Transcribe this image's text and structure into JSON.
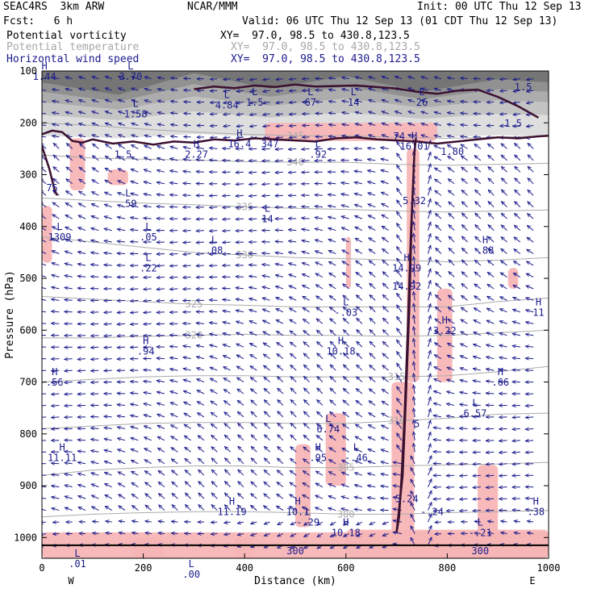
{
  "header": {
    "model": "SEAC4RS  3km ARW",
    "org": "NCAR/MMM",
    "init": "Init: 00 UTC Thu 12 Sep 13",
    "fcst": "Fcst:   6 h",
    "valid": "Valid: 06 UTC Thu 12 Sep 13 (01 CDT Thu 12 Sep 13)",
    "fields": [
      {
        "name": "Potential vorticity",
        "xy": "XY=  97.0, 98.5 to 430.8,123.5",
        "color": "#000000"
      },
      {
        "name": "Potential temperature",
        "xy": "XY=  97.0, 98.5 to 430.8,123.5",
        "color": "#a8a8a8"
      },
      {
        "name": "Horizontal wind speed",
        "xy": "XY=  97.0, 98.5 to 430.8,123.5",
        "color": "#1a1a8c"
      }
    ]
  },
  "chart_data": {
    "type": "cross-section",
    "xlabel": "Distance (km)",
    "ylabel": "Pressure (hPa)",
    "xlim": [
      0,
      1000
    ],
    "ylim": [
      1040,
      100
    ],
    "x_ticks": [
      0,
      200,
      400,
      600,
      800,
      1000
    ],
    "y_ticks": [
      100,
      200,
      300,
      400,
      500,
      600,
      700,
      800,
      900,
      1000
    ],
    "x_ends": {
      "left": "W",
      "right": "E"
    },
    "theta_contours": [
      {
        "label": "345",
        "x": [
          0,
          100,
          200,
          300,
          400,
          500,
          600,
          700,
          800,
          900,
          1000
        ],
        "p": [
          200,
          205,
          212,
          218,
          222,
          225,
          225,
          228,
          230,
          228,
          225
        ]
      },
      {
        "label": "340",
        "x": [
          0,
          100,
          200,
          300,
          400,
          500,
          600,
          700,
          800,
          900,
          1000
        ],
        "p": [
          262,
          268,
          270,
          272,
          275,
          276,
          276,
          280,
          282,
          280,
          278
        ]
      },
      {
        "label": "335",
        "x": [
          0,
          100,
          200,
          300,
          400,
          500,
          600,
          700,
          800,
          900,
          1000
        ],
        "p": [
          345,
          350,
          355,
          358,
          362,
          365,
          367,
          370,
          372,
          370,
          368
        ]
      },
      {
        "label": "330",
        "x": [
          0,
          100,
          200,
          300,
          400,
          500,
          600,
          700,
          800,
          900,
          1000
        ],
        "p": [
          420,
          430,
          440,
          450,
          455,
          460,
          462,
          465,
          468,
          465,
          460
        ]
      },
      {
        "label": "325",
        "x": [
          0,
          100,
          200,
          300,
          400,
          500,
          600,
          700,
          800,
          900,
          1000
        ],
        "p": [
          535,
          540,
          545,
          550,
          552,
          555,
          555,
          555,
          555,
          545,
          538
        ]
      },
      {
        "label": "320",
        "x": [
          0,
          100,
          200,
          300,
          400,
          500,
          600,
          700,
          800,
          900,
          1000
        ],
        "p": [
          615,
          615,
          612,
          610,
          608,
          610,
          610,
          612,
          610,
          605,
          600
        ]
      },
      {
        "label": "315",
        "x": [
          0,
          100,
          200,
          300,
          400,
          500,
          600,
          700,
          800,
          900,
          1000
        ],
        "p": [
          700,
          695,
          690,
          688,
          688,
          690,
          690,
          690,
          688,
          680,
          670
        ]
      },
      {
        "label": "310",
        "x": [
          0,
          100,
          200,
          300,
          400,
          500,
          600,
          700,
          800,
          900,
          1000
        ],
        "p": [
          790,
          785,
          780,
          778,
          778,
          780,
          780,
          775,
          770,
          762,
          760
        ]
      },
      {
        "label": "305",
        "x": [
          0,
          100,
          200,
          300,
          400,
          500,
          600,
          700,
          800,
          900,
          1000
        ],
        "p": [
          880,
          870,
          865,
          862,
          862,
          865,
          865,
          862,
          860,
          858,
          855
        ]
      },
      {
        "label": "300",
        "x": [
          0,
          100,
          200,
          300,
          400,
          500,
          600,
          700,
          800,
          900,
          1000
        ],
        "p": [
          960,
          955,
          952,
          950,
          950,
          952,
          955,
          955,
          952,
          950,
          948
        ]
      }
    ],
    "pv_contour_tropopause": {
      "x": [
        0,
        20,
        40,
        60,
        80,
        100,
        140,
        180,
        220,
        260,
        300,
        340,
        380,
        420,
        460,
        500,
        540,
        580,
        620,
        660,
        700,
        740,
        780,
        820,
        860,
        900,
        940,
        980,
        1000
      ],
      "p": [
        222,
        215,
        218,
        235,
        238,
        232,
        240,
        236,
        242,
        236,
        238,
        232,
        234,
        230,
        232,
        234,
        236,
        230,
        228,
        232,
        234,
        236,
        240,
        236,
        232,
        228,
        230,
        226,
        225
      ]
    },
    "pv_contour_upper": {
      "x": [
        300,
        340,
        380,
        420,
        460,
        500,
        540,
        580,
        620,
        660,
        700,
        740,
        780,
        820,
        860,
        900,
        940,
        980
      ],
      "p": [
        135,
        130,
        133,
        128,
        131,
        126,
        130,
        129,
        128,
        131,
        134,
        140,
        144,
        138,
        136,
        150,
        168,
        190
      ]
    },
    "pv_tower": {
      "x": [
        700,
        712,
        718,
        725,
        730,
        735,
        738,
        735,
        728,
        722,
        716,
        710,
        705,
        700
      ],
      "p": [
        990,
        880,
        740,
        560,
        380,
        260,
        230,
        260,
        420,
        600,
        760,
        880,
        960,
        990
      ]
    },
    "labels": [
      {
        "t": "H",
        "v": "1.44",
        "x": 5,
        "p": 100
      },
      {
        "t": "L",
        "v": "3.70",
        "x": 175,
        "p": 100
      },
      {
        "t": "L",
        "v": "1.58",
        "x": 185,
        "p": 172
      },
      {
        "t": "L",
        "v": "4.84",
        "x": 365,
        "p": 155
      },
      {
        "t": "L",
        "v": "1.5",
        "x": 420,
        "p": 150
      },
      {
        "t": "L",
        "v": "67",
        "x": 530,
        "p": 150
      },
      {
        "t": "L",
        "v": "14",
        "x": 615,
        "p": 150
      },
      {
        "t": "L",
        "v": "26",
        "x": 750,
        "p": 150
      },
      {
        "t": "",
        "v": "1.5",
        "x": 950,
        "p": 120
      },
      {
        "t": "",
        "v": "1.5",
        "x": 930,
        "p": 190
      },
      {
        "t": "H",
        "v": "16.4",
        "x": 390,
        "p": 230
      },
      {
        "t": "",
        "v": "347",
        "x": 450,
        "p": 230
      },
      {
        "t": "H",
        "v": "2.27",
        "x": 305,
        "p": 250
      },
      {
        "t": "L",
        "v": ".92",
        "x": 545,
        "p": 250
      },
      {
        "t": "H",
        "v": "16.01",
        "x": 735,
        "p": 235
      },
      {
        "t": "",
        "v": "1.80",
        "x": 810,
        "p": 245
      },
      {
        "t": "",
        "v": "1.5",
        "x": 160,
        "p": 250
      },
      {
        "t": "",
        "v": "74",
        "x": 705,
        "p": 215
      },
      {
        "t": "",
        "v": "75",
        "x": 20,
        "p": 315
      },
      {
        "t": "L",
        "v": ".59",
        "x": 170,
        "p": 345
      },
      {
        "t": "L",
        "v": "14",
        "x": 445,
        "p": 375
      },
      {
        "t": "",
        "v": "5.32",
        "x": 735,
        "p": 340
      },
      {
        "t": "L",
        "v": "1309",
        "x": 35,
        "p": 410
      },
      {
        "t": "L",
        "v": ".05",
        "x": 210,
        "p": 410
      },
      {
        "t": "L",
        "v": ".08",
        "x": 340,
        "p": 435
      },
      {
        "t": "H",
        "v": ".88",
        "x": 875,
        "p": 435
      },
      {
        "t": "L",
        "v": ".22",
        "x": 210,
        "p": 470
      },
      {
        "t": "H",
        "v": "14.99",
        "x": 720,
        "p": 470
      },
      {
        "t": "",
        "v": "14.92",
        "x": 720,
        "p": 505
      },
      {
        "t": "L",
        "v": "-.03",
        "x": 600,
        "p": 555
      },
      {
        "t": "H",
        "v": "11",
        "x": 980,
        "p": 555
      },
      {
        "t": "H",
        "v": "3.22",
        "x": 795,
        "p": 590
      },
      {
        "t": "H",
        "v": ".94",
        "x": 205,
        "p": 630
      },
      {
        "t": "H",
        "v": "10.18",
        "x": 590,
        "p": 630
      },
      {
        "t": "H",
        "v": ".56",
        "x": 25,
        "p": 690
      },
      {
        "t": "H",
        "v": ".66",
        "x": 905,
        "p": 690
      },
      {
        "t": "L",
        "v": "6.57",
        "x": 855,
        "p": 750
      },
      {
        "t": "L",
        "v": "6.74",
        "x": 565,
        "p": 780
      },
      {
        "t": "",
        "v": "5",
        "x": 740,
        "p": 770
      },
      {
        "t": "H",
        "v": "11.11",
        "x": 40,
        "p": 835
      },
      {
        "t": "H",
        "v": ".95",
        "x": 545,
        "p": 835
      },
      {
        "t": "L",
        "v": "-.46",
        "x": 620,
        "p": 835
      },
      {
        "t": "H",
        "v": "11.19",
        "x": 375,
        "p": 940
      },
      {
        "t": "",
        "v": "5.24",
        "x": 720,
        "p": 915
      },
      {
        "t": "H",
        "v": "10.1",
        "x": 505,
        "p": 940
      },
      {
        "t": "",
        "v": "-.24",
        "x": 770,
        "p": 940
      },
      {
        "t": "H",
        "v": ".38",
        "x": 975,
        "p": 940
      },
      {
        "t": "L",
        "v": "-.29",
        "x": 525,
        "p": 960
      },
      {
        "t": "H",
        "v": "10.18",
        "x": 600,
        "p": 980
      },
      {
        "t": "L",
        "v": "-.21",
        "x": 865,
        "p": 980
      },
      {
        "t": "",
        "v": "300",
        "x": 865,
        "p": 1015
      },
      {
        "t": "",
        "v": "300",
        "x": 500,
        "p": 1015
      },
      {
        "t": "L",
        "v": ".01",
        "x": 70,
        "p": 1040
      },
      {
        "t": "L",
        "v": ".00",
        "x": 295,
        "p": 1060
      }
    ]
  }
}
